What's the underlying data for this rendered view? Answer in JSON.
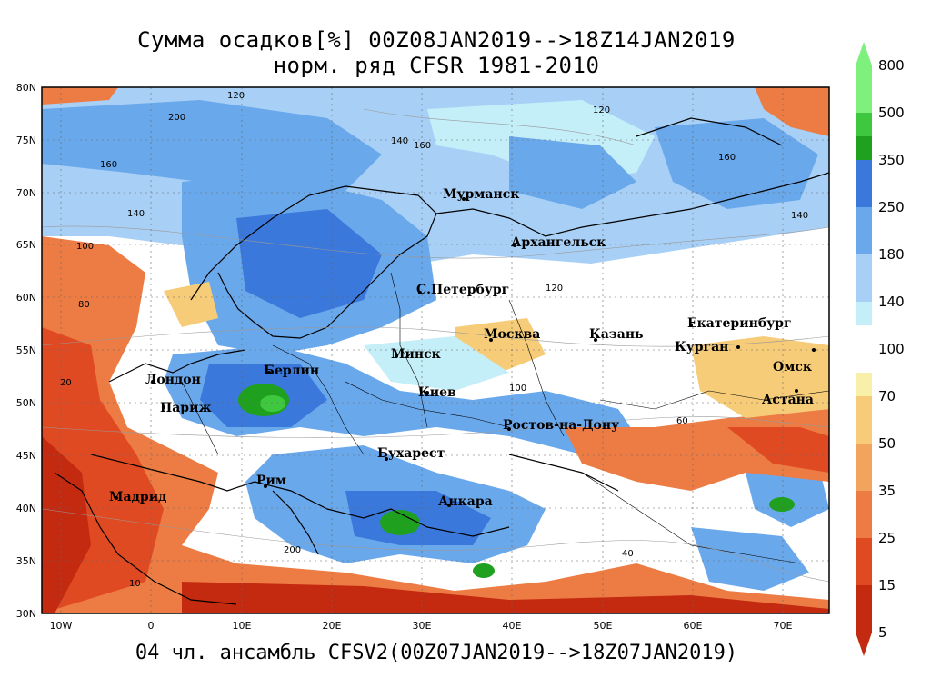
{
  "title": {
    "line1": "Сумма осадков[%] 00Z08JAN2019-->18Z14JAN2019",
    "line2": "норм. ряд CFSR 1981-2010"
  },
  "footer": "04 чл. ансамбль CFSV2(00Z07JAN2019-->18Z07JAN2019)",
  "map": {
    "lat_labels": [
      "80N",
      "75N",
      "70N",
      "65N",
      "60N",
      "55N",
      "50N",
      "45N",
      "40N",
      "35N",
      "30N"
    ],
    "lon_labels": [
      "10W",
      "0",
      "10E",
      "20E",
      "30E",
      "40E",
      "50E",
      "60E",
      "70E"
    ],
    "cities": [
      "Мурманск",
      "Архангельск",
      "С.Петербург",
      "Екатеринбург",
      "Москва",
      "Казань",
      "Курган",
      "Минск",
      "Берлин",
      "Омск",
      "Лондон",
      "Париж",
      "Киев",
      "Астана",
      "Ростов-на-Дону",
      "Бухарест",
      "Рим",
      "Мадрид",
      "Анкара"
    ],
    "contour_labels": [
      "120",
      "200",
      "160",
      "140",
      "100",
      "80",
      "60",
      "40",
      "20",
      "10"
    ]
  },
  "colorbar": {
    "labels": [
      "800",
      "500",
      "350",
      "250",
      "180",
      "140",
      "100",
      "70",
      "50",
      "35",
      "25",
      "15",
      "5"
    ],
    "colors": {
      "c800": "#7ef07e",
      "c500": "#3fc83f",
      "c350": "#1fa01f",
      "c250": "#3a78dc",
      "c180": "#6aa8ec",
      "c140": "#a8d0f6",
      "c100": "#c4eef8",
      "c70": "#f8f0a8",
      "c50": "#f6cc78",
      "c35": "#f2a45c",
      "c25": "#ec7c44",
      "c15": "#e04a22",
      "c5": "#c42a10"
    }
  }
}
